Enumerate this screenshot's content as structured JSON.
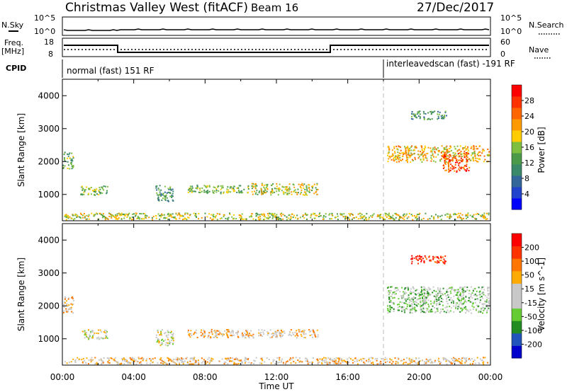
{
  "header": {
    "title": "Christmas Valley West (fitACF)",
    "beam": "Beam 16",
    "date": "27/Dec/2017"
  },
  "noise_panel": {
    "left_label": "N.Sky",
    "right_label": "N.Search",
    "left_ticks": [
      "10^5",
      "10^0"
    ],
    "right_ticks": [
      "10^5",
      "10^0"
    ]
  },
  "freq_panel": {
    "left_label_line1": "Freq.",
    "left_label_line2": "[MHz]",
    "right_label": "Nave",
    "left_ticks": [
      "18",
      "8"
    ],
    "right_ticks": [
      "60",
      "0"
    ]
  },
  "cpid": {
    "label": "CPID",
    "mode1": "normal (fast) 151 RF",
    "mode2": "interleavedscan (fast) -191 RF",
    "switch_hour": 18
  },
  "colors": {
    "power_scale": [
      "#0000ff",
      "#2244cc",
      "#336699",
      "#3a8a6a",
      "#4a9a4a",
      "#7fbf3f",
      "#ffcc00",
      "#ff9900",
      "#ff6600",
      "#ff3300",
      "#ff0000"
    ],
    "velocity_scale": [
      "#0000cc",
      "#2255bb",
      "#228b22",
      "#66cc33",
      "#c8c8c8",
      "#c8c8c8",
      "#ffaa00",
      "#ff7700",
      "#ff3300",
      "#ff0000"
    ]
  },
  "chart_data": [
    {
      "type": "heatmap",
      "name": "power",
      "ylabel": "Slant Range [km]",
      "colorbar_label": "Power [dB]",
      "colorbar_ticks": [
        "28",
        "24",
        "20",
        "16",
        "12",
        "8",
        "4"
      ],
      "ylim": [
        200,
        4500
      ],
      "xlim_hours": [
        0,
        24
      ],
      "ytick_labels": [
        "1000",
        "2000",
        "3000",
        "4000"
      ],
      "ytick_values": [
        1000,
        2000,
        3000,
        4000
      ],
      "echo_regions": [
        {
          "t0": 0.1,
          "t1": 23.9,
          "r0": 250,
          "r1": 450,
          "level": 6
        },
        {
          "t0": 0.0,
          "t1": 0.6,
          "r0": 1800,
          "r1": 2300,
          "level": 5
        },
        {
          "t0": 1.0,
          "t1": 2.5,
          "r0": 1000,
          "r1": 1300,
          "level": 5
        },
        {
          "t0": 5.2,
          "t1": 6.2,
          "r0": 800,
          "r1": 1300,
          "level": 4
        },
        {
          "t0": 7.0,
          "t1": 10.5,
          "r0": 1050,
          "r1": 1300,
          "level": 5
        },
        {
          "t0": 10.5,
          "t1": 14.3,
          "r0": 1000,
          "r1": 1350,
          "level": 6
        },
        {
          "t0": 18.2,
          "t1": 23.9,
          "r0": 2000,
          "r1": 2500,
          "level": 7
        },
        {
          "t0": 21.3,
          "t1": 22.8,
          "r0": 1700,
          "r1": 2300,
          "level": 9
        },
        {
          "t0": 19.5,
          "t1": 21.5,
          "r0": 3300,
          "r1": 3550,
          "level": 4
        }
      ]
    },
    {
      "type": "heatmap",
      "name": "velocity",
      "ylabel": "Slant Range [km]",
      "colorbar_label": "Velocity [m s^-1]",
      "colorbar_ticks": [
        "200",
        "100",
        "50",
        "15",
        "-15",
        "-50",
        "-100",
        "-200"
      ],
      "ylim": [
        200,
        4500
      ],
      "xlim_hours": [
        0,
        24
      ],
      "ytick_labels": [
        "1000",
        "2000",
        "3000",
        "4000"
      ],
      "ytick_values": [
        1000,
        2000,
        3000,
        4000
      ],
      "echo_regions": [
        {
          "t0": 0.1,
          "t1": 23.9,
          "r0": 250,
          "r1": 450,
          "level": 6
        },
        {
          "t0": 0.0,
          "t1": 0.6,
          "r0": 1800,
          "r1": 2300,
          "level": 6
        },
        {
          "t0": 1.0,
          "t1": 2.5,
          "r0": 1000,
          "r1": 1300,
          "level": 5
        },
        {
          "t0": 5.2,
          "t1": 6.2,
          "r0": 800,
          "r1": 1300,
          "level": 5
        },
        {
          "t0": 7.0,
          "t1": 14.3,
          "r0": 1050,
          "r1": 1300,
          "level": 6
        },
        {
          "t0": 18.2,
          "t1": 23.9,
          "r0": 1800,
          "r1": 2600,
          "level": 4
        },
        {
          "t0": 19.5,
          "t1": 21.5,
          "r0": 3300,
          "r1": 3550,
          "level": 9
        }
      ]
    }
  ],
  "time_axis": {
    "label": "Time UT",
    "ticks": [
      "00:00",
      "04:00",
      "08:00",
      "12:00",
      "16:00",
      "20:00",
      "00:00"
    ]
  }
}
